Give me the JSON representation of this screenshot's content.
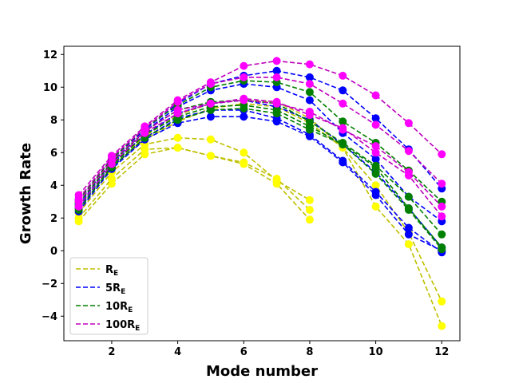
{
  "chart_data": {
    "type": "line",
    "title": "",
    "xlabel": "Mode number",
    "ylabel": "Growth Rate",
    "xlim": [
      0.55,
      12.55
    ],
    "ylim": [
      -5.5,
      12.5
    ],
    "xticks": [
      2,
      4,
      6,
      8,
      10,
      12
    ],
    "yticks": [
      -4,
      -2,
      0,
      2,
      4,
      6,
      8,
      10,
      12
    ],
    "grid": false,
    "legend_position": "lower-left",
    "series": [
      {
        "name": "R_E",
        "label_main": "R",
        "label_sub": "E",
        "color": "#bfbf00",
        "marker_color": "#ffff00",
        "x": [
          1,
          2,
          3,
          4,
          5,
          6,
          7,
          8
        ],
        "y": [
          1.8,
          4.1,
          5.9,
          6.3,
          5.8,
          5.3,
          4.1,
          1.9
        ]
      },
      {
        "name": "R_E",
        "label_main": "R",
        "label_sub": "E",
        "color": "#bfbf00",
        "marker_color": "#ffff00",
        "x": [
          1,
          2,
          3,
          4,
          5,
          6,
          7,
          8
        ],
        "y": [
          2.0,
          4.4,
          6.2,
          6.3,
          5.8,
          5.4,
          4.4,
          2.5
        ]
      },
      {
        "name": "R_E",
        "label_main": "R",
        "label_sub": "E",
        "color": "#bfbf00",
        "marker_color": "#ffff00",
        "x": [
          1,
          2,
          3,
          4,
          5,
          6,
          7,
          8
        ],
        "y": [
          2.3,
          4.8,
          6.5,
          6.9,
          6.8,
          6.0,
          4.3,
          3.1
        ]
      },
      {
        "name": "R_E",
        "label_main": "R",
        "label_sub": "E",
        "color": "#bfbf00",
        "marker_color": "#ffff00",
        "x": [
          1,
          2,
          3,
          4,
          5,
          6,
          7,
          8,
          9,
          10,
          11,
          12
        ],
        "y": [
          2.6,
          5.1,
          6.8,
          7.9,
          8.7,
          9.0,
          8.8,
          7.8,
          6.3,
          4.0,
          1.1,
          -3.1
        ]
      },
      {
        "name": "R_E",
        "label_main": "R",
        "label_sub": "E",
        "color": "#bfbf00",
        "marker_color": "#ffff00",
        "x": [
          1,
          2,
          3,
          4,
          5,
          6,
          7,
          8,
          9,
          10,
          11,
          12
        ],
        "y": [
          2.7,
          5.2,
          7.0,
          8.3,
          9.0,
          9.2,
          9.1,
          8.1,
          6.3,
          2.7,
          0.4,
          -4.6
        ]
      },
      {
        "name": "5R_E",
        "label_main": "5R",
        "label_sub": "E",
        "color": "#0000ff",
        "marker_color": "#0000ff",
        "x": [
          1,
          2,
          3,
          4,
          5,
          6,
          7,
          8,
          9,
          10,
          11,
          12
        ],
        "y": [
          2.4,
          5.0,
          6.8,
          7.8,
          8.2,
          8.2,
          7.9,
          7.0,
          5.4,
          3.4,
          1.0,
          0.0
        ]
      },
      {
        "name": "5R_E",
        "label_main": "5R",
        "label_sub": "E",
        "color": "#0000ff",
        "marker_color": "#0000ff",
        "x": [
          1,
          2,
          3,
          4,
          5,
          6,
          7,
          8,
          9,
          10,
          11,
          12
        ],
        "y": [
          2.6,
          5.1,
          6.9,
          8.1,
          8.6,
          8.6,
          8.1,
          7.1,
          5.5,
          3.6,
          1.4,
          -0.1
        ]
      },
      {
        "name": "5R_E",
        "label_main": "5R",
        "label_sub": "E",
        "color": "#0000ff",
        "marker_color": "#0000ff",
        "x": [
          1,
          2,
          3,
          4,
          5,
          6,
          7,
          8,
          9,
          10,
          11,
          12
        ],
        "y": [
          2.8,
          5.3,
          7.1,
          8.4,
          9.0,
          9.2,
          8.8,
          8.0,
          6.5,
          4.8,
          2.6,
          0.2
        ]
      },
      {
        "name": "5R_E",
        "label_main": "5R",
        "label_sub": "E",
        "color": "#0000ff",
        "marker_color": "#0000ff",
        "x": [
          1,
          2,
          3,
          4,
          5,
          6,
          7,
          8,
          9,
          10,
          11,
          12
        ],
        "y": [
          3.0,
          5.4,
          7.3,
          8.8,
          9.8,
          10.2,
          10.0,
          9.2,
          7.2,
          5.6,
          3.3,
          1.8
        ]
      },
      {
        "name": "5R_E",
        "label_main": "5R",
        "label_sub": "E",
        "color": "#0000ff",
        "marker_color": "#0000ff",
        "x": [
          1,
          2,
          3,
          4,
          5,
          6,
          7,
          8,
          9,
          10,
          11,
          12
        ],
        "y": [
          3.1,
          5.6,
          7.4,
          9.0,
          10.2,
          10.7,
          11.0,
          10.6,
          9.8,
          8.1,
          6.2,
          3.8
        ]
      },
      {
        "name": "10R_E",
        "label_main": "10R",
        "label_sub": "E",
        "color": "#007f00",
        "marker_color": "#008000",
        "x": [
          1,
          2,
          3,
          4,
          5,
          6,
          7,
          8,
          9,
          10,
          11,
          12
        ],
        "y": [
          2.5,
          5.1,
          6.9,
          8.0,
          8.6,
          8.7,
          8.4,
          7.4,
          6.5,
          4.7,
          2.5,
          0.1
        ]
      },
      {
        "name": "10R_E",
        "label_main": "10R",
        "label_sub": "E",
        "color": "#007f00",
        "marker_color": "#008000",
        "x": [
          1,
          2,
          3,
          4,
          5,
          6,
          7,
          8,
          9,
          10,
          11,
          12
        ],
        "y": [
          2.7,
          5.2,
          7.1,
          8.2,
          8.8,
          8.9,
          8.6,
          7.6,
          6.5,
          5.1,
          2.6,
          0.2
        ]
      },
      {
        "name": "10R_E",
        "label_main": "10R",
        "label_sub": "E",
        "color": "#007f00",
        "marker_color": "#008000",
        "x": [
          1,
          2,
          3,
          4,
          5,
          6,
          7,
          8,
          9,
          10,
          11,
          12
        ],
        "y": [
          2.9,
          5.4,
          7.3,
          8.6,
          9.1,
          9.2,
          9.0,
          7.9,
          6.6,
          5.2,
          3.3,
          1.0
        ]
      },
      {
        "name": "10R_E",
        "label_main": "10R",
        "label_sub": "E",
        "color": "#007f00",
        "marker_color": "#008000",
        "x": [
          1,
          2,
          3,
          4,
          5,
          6,
          7,
          8,
          9,
          10,
          11,
          12
        ],
        "y": [
          3.1,
          5.6,
          7.5,
          8.9,
          10.0,
          10.4,
          10.3,
          9.7,
          7.9,
          6.6,
          4.9,
          3.0
        ]
      },
      {
        "name": "100R_E",
        "label_main": "100R",
        "label_sub": "E",
        "color": "#bf00bf",
        "marker_color": "#ff00ff",
        "x": [
          1,
          2,
          3,
          4,
          5,
          6,
          7,
          8,
          9,
          10,
          11,
          12
        ],
        "y": [
          2.7,
          5.3,
          7.2,
          8.4,
          9.0,
          9.3,
          9.1,
          8.3,
          7.5,
          6.0,
          4.6,
          2.1
        ]
      },
      {
        "name": "100R_E",
        "label_main": "100R",
        "label_sub": "E",
        "color": "#bf00bf",
        "marker_color": "#ff00ff",
        "x": [
          1,
          2,
          3,
          4,
          5,
          6,
          7,
          8,
          9,
          10,
          11,
          12
        ],
        "y": [
          3.0,
          5.5,
          7.3,
          8.6,
          9.0,
          9.2,
          9.0,
          8.5,
          7.4,
          6.4,
          4.8,
          2.7
        ]
      },
      {
        "name": "100R_E",
        "label_main": "100R",
        "label_sub": "E",
        "color": "#bf00bf",
        "marker_color": "#ff00ff",
        "x": [
          1,
          2,
          3,
          4,
          5,
          6,
          7,
          8,
          9,
          10,
          11,
          12
        ],
        "y": [
          3.2,
          5.7,
          7.5,
          9.1,
          10.2,
          10.6,
          10.6,
          10.2,
          9.0,
          7.7,
          6.1,
          4.1
        ]
      },
      {
        "name": "100R_E",
        "label_main": "100R",
        "label_sub": "E",
        "color": "#bf00bf",
        "marker_color": "#ff00ff",
        "x": [
          1,
          2,
          3,
          4,
          5,
          6,
          7,
          8,
          9,
          10,
          11,
          12
        ],
        "y": [
          3.4,
          5.8,
          7.6,
          9.2,
          10.3,
          11.3,
          11.6,
          11.4,
          10.7,
          9.5,
          7.8,
          5.9
        ]
      }
    ],
    "legend": [
      {
        "name": "R_E",
        "label_main": "R",
        "label_sub": "E",
        "color": "#bfbf00"
      },
      {
        "name": "5R_E",
        "label_main": "5R",
        "label_sub": "E",
        "color": "#0000ff"
      },
      {
        "name": "10R_E",
        "label_main": "10R",
        "label_sub": "E",
        "color": "#007f00"
      },
      {
        "name": "100R_E",
        "label_main": "100R",
        "label_sub": "E",
        "color": "#bf00bf"
      }
    ]
  }
}
